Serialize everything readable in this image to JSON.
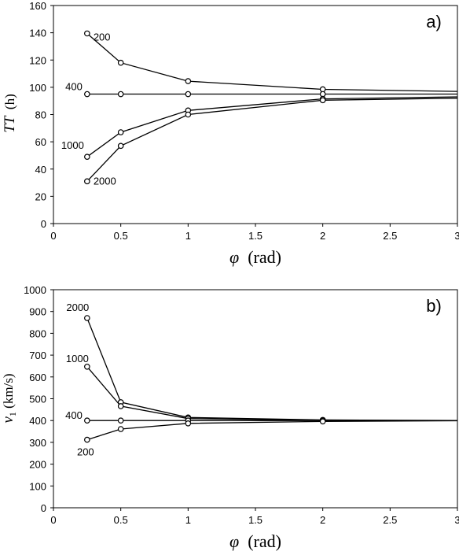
{
  "chart_data": [
    {
      "type": "line",
      "panel_label": "a)",
      "xlabel_symbol": "φ",
      "xlabel_unit": "(rad)",
      "ylabel": "TT (h)",
      "ylabel_symbol": "TT",
      "ylabel_unit": "(h)",
      "xlim": [
        0,
        3
      ],
      "ylim": [
        0,
        160
      ],
      "xticks": [
        0,
        0.5,
        1,
        1.5,
        2,
        2.5,
        3
      ],
      "xtick_labels": [
        "0",
        "0.5",
        "1",
        "1.5",
        "2",
        "2.5",
        "3"
      ],
      "yticks": [
        0,
        20,
        40,
        60,
        80,
        100,
        120,
        140,
        160
      ],
      "ytick_labels": [
        "0",
        "20",
        "40",
        "60",
        "80",
        "100",
        "120",
        "140",
        "160"
      ],
      "grid": false,
      "series": [
        {
          "name": "200",
          "x": [
            0.25,
            0.5,
            1,
            2,
            3
          ],
          "y": [
            139.5,
            118,
            104.5,
            98.5,
            97
          ]
        },
        {
          "name": "400",
          "x": [
            0.25,
            0.5,
            1,
            2,
            3
          ],
          "y": [
            95,
            95,
            95,
            95,
            95
          ]
        },
        {
          "name": "1000",
          "x": [
            0.25,
            0.5,
            1,
            2,
            3
          ],
          "y": [
            49,
            67,
            83,
            91.5,
            93
          ]
        },
        {
          "name": "2000",
          "x": [
            0.25,
            0.5,
            1,
            2,
            3
          ],
          "y": [
            31,
            57,
            80,
            90.5,
            92
          ]
        }
      ]
    },
    {
      "type": "line",
      "panel_label": "b)",
      "xlabel_symbol": "φ",
      "xlabel_unit": "(rad)",
      "ylabel": "v1 (km/s)",
      "ylabel_symbol": "v",
      "ylabel_sub": "1",
      "ylabel_unit": "(km/s)",
      "xlim": [
        0,
        3
      ],
      "ylim": [
        0,
        1000
      ],
      "xticks": [
        0,
        0.5,
        1,
        1.5,
        2,
        2.5,
        3
      ],
      "xtick_labels": [
        "0",
        "0.5",
        "1",
        "1.5",
        "2",
        "2.5",
        "3"
      ],
      "yticks": [
        0,
        100,
        200,
        300,
        400,
        500,
        600,
        700,
        800,
        900,
        1000
      ],
      "ytick_labels": [
        "0",
        "100",
        "200",
        "300",
        "400",
        "500",
        "600",
        "700",
        "800",
        "900",
        "1000"
      ],
      "grid": false,
      "series": [
        {
          "name": "2000",
          "x": [
            0.25,
            0.5,
            1,
            2,
            3
          ],
          "y": [
            870,
            484,
            414,
            403,
            400
          ]
        },
        {
          "name": "1000",
          "x": [
            0.25,
            0.5,
            1,
            2,
            3
          ],
          "y": [
            647,
            466,
            409,
            401,
            400
          ]
        },
        {
          "name": "400",
          "x": [
            0.25,
            0.5,
            1,
            2,
            3
          ],
          "y": [
            400,
            400,
            400,
            400,
            400
          ]
        },
        {
          "name": "200",
          "x": [
            0.25,
            0.5,
            1,
            2,
            3
          ],
          "y": [
            312,
            361,
            387,
            396,
            399
          ]
        }
      ]
    }
  ]
}
